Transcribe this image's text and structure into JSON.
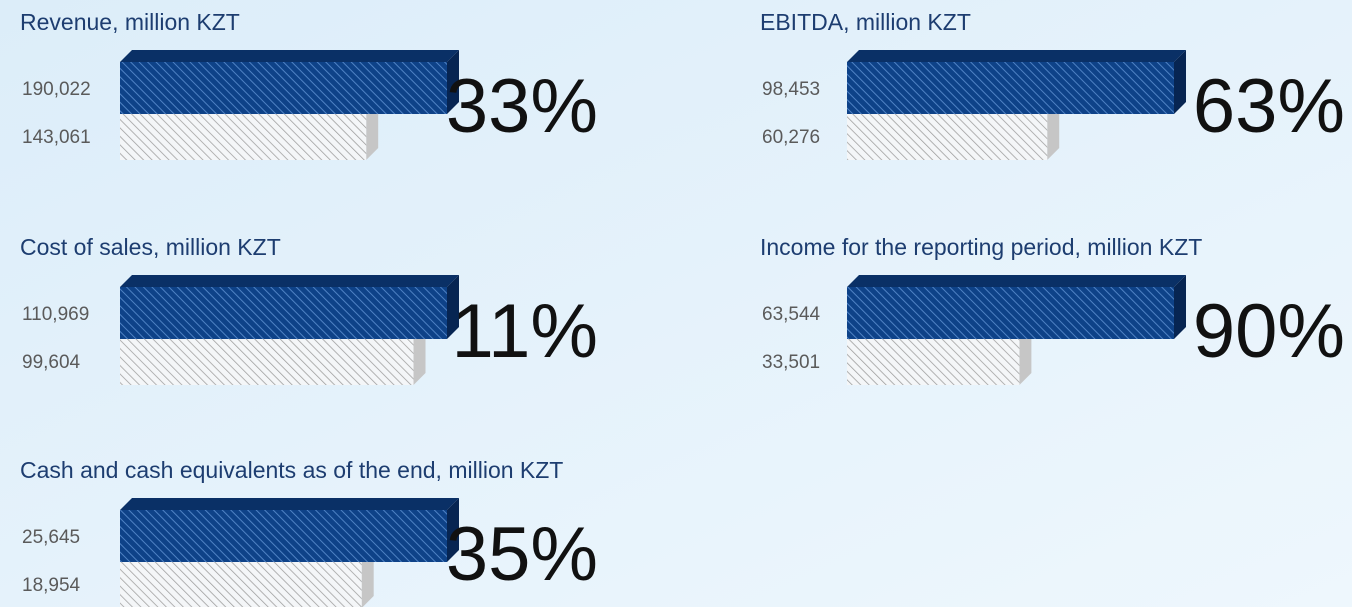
{
  "chart_data": [
    {
      "type": "bar",
      "title": "Revenue, million KZT",
      "values": [
        190022,
        143061
      ],
      "value_labels": [
        "190,022",
        "143,061"
      ],
      "colors": [
        "#0e4288",
        "#c6c6c6"
      ],
      "annotation": "33%"
    },
    {
      "type": "bar",
      "title": "EBITDA, million KZT",
      "values": [
        98453,
        60276
      ],
      "value_labels": [
        "98,453",
        "60,276"
      ],
      "colors": [
        "#0e4288",
        "#c6c6c6"
      ],
      "annotation": "63%"
    },
    {
      "type": "bar",
      "title": "Cost of sales, million KZT",
      "values": [
        110969,
        99604
      ],
      "value_labels": [
        "110,969",
        "99,604"
      ],
      "colors": [
        "#0e4288",
        "#c6c6c6"
      ],
      "annotation": "11%"
    },
    {
      "type": "bar",
      "title": "Income for the reporting period, million KZT",
      "values": [
        63544,
        33501
      ],
      "value_labels": [
        "63,544",
        "33,501"
      ],
      "colors": [
        "#0e4288",
        "#c6c6c6"
      ],
      "annotation": "90%"
    },
    {
      "type": "bar",
      "title": "Cash and cash equivalents as of the end, million KZT",
      "values": [
        25645,
        18954
      ],
      "value_labels": [
        "25,645",
        "18,954"
      ],
      "colors": [
        "#0e4288",
        "#c6c6c6"
      ],
      "annotation": "35%"
    }
  ]
}
